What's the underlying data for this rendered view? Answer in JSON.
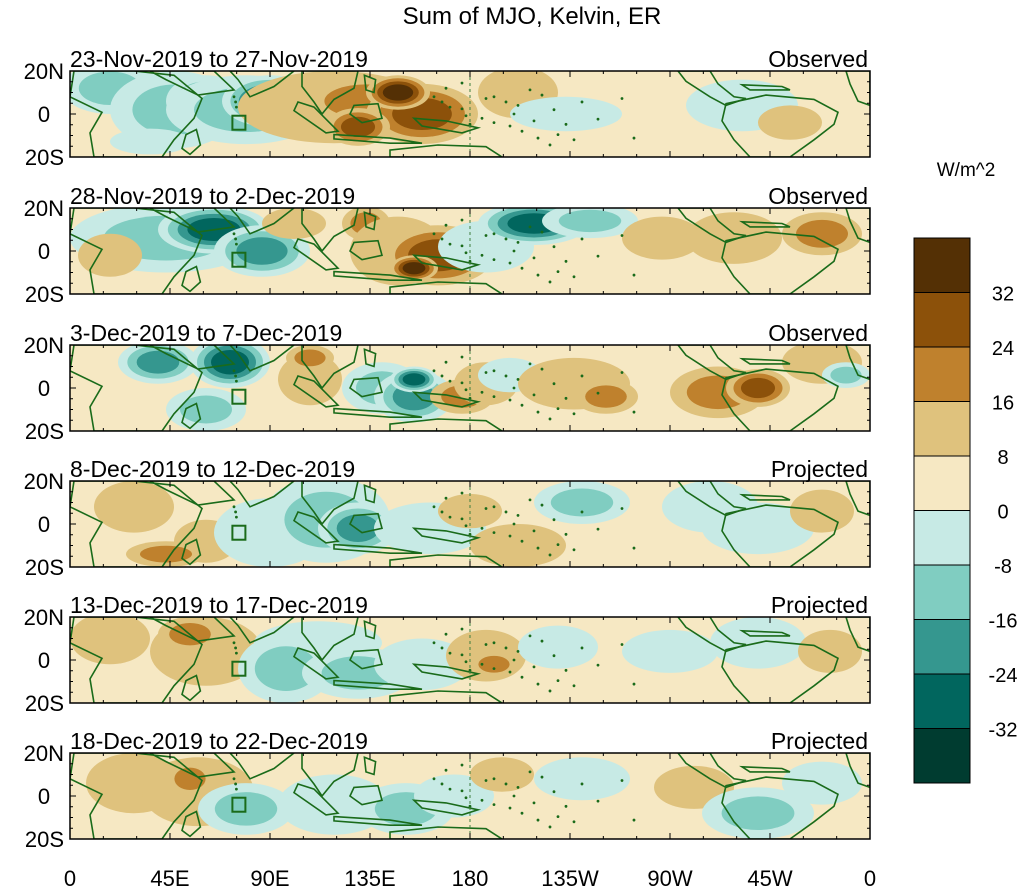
{
  "title": "Sum of MJO, Kelvin, ER",
  "colorbar": {
    "unit": "W/m^2",
    "tick_labels": [
      "32",
      "24",
      "16",
      "8",
      "0",
      "-8",
      "-16",
      "-24",
      "-32"
    ],
    "colors": [
      "#543005",
      "#8c510a",
      "#bf812d",
      "#dfc27d",
      "#f6e8c3",
      "#c7eae5",
      "#80cdc1",
      "#35978f",
      "#01665e",
      "#003c30"
    ]
  },
  "longitude_labels": [
    "0",
    "45E",
    "90E",
    "135E",
    "180",
    "135W",
    "90W",
    "45W",
    "0"
  ],
  "latitude_labels": [
    "20N",
    "0",
    "20S"
  ],
  "coastline_color": "#1a6b1a",
  "panels": [
    {
      "date_range": "23-Nov-2019 to 27-Nov-2019",
      "status": "Observed"
    },
    {
      "date_range": "28-Nov-2019 to 2-Dec-2019",
      "status": "Observed"
    },
    {
      "date_range": "3-Dec-2019 to 7-Dec-2019",
      "status": "Observed"
    },
    {
      "date_range": "8-Dec-2019 to 12-Dec-2019",
      "status": "Projected"
    },
    {
      "date_range": "13-Dec-2019 to 17-Dec-2019",
      "status": "Projected"
    },
    {
      "date_range": "18-Dec-2019 to 22-Dec-2019",
      "status": "Projected"
    }
  ]
}
